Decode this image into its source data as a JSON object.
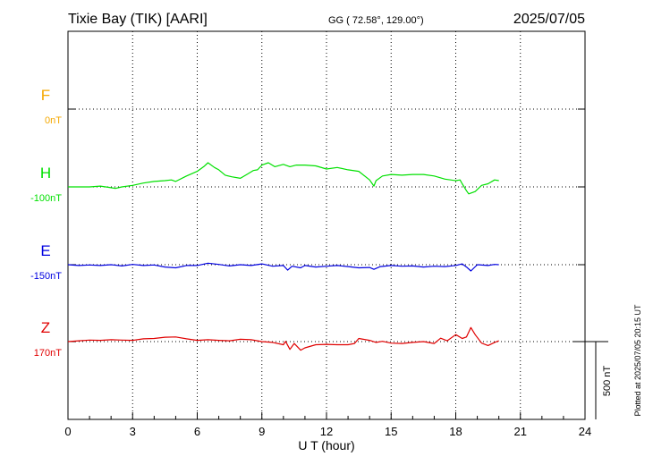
{
  "header": {
    "station": "Tixie Bay (TIK)  [AARI]",
    "coords": "GG ( 72.58°, 129.00°)",
    "date": "2025/07/05"
  },
  "footer": {
    "plotted": "Plotted at 2025/07/05 20:15 UT"
  },
  "colors": {
    "F": "#f5a800",
    "H": "#00e000",
    "E": "#0000e0",
    "Z": "#e00000"
  },
  "chart_data": {
    "type": "line",
    "xlabel": "U T (hour)",
    "xlim": [
      0,
      24
    ],
    "xticks": [
      "0",
      "3",
      "6",
      "9",
      "12",
      "15",
      "18",
      "21",
      "24"
    ],
    "y_offset_units": "nT",
    "scale_bar_label": "500 nT",
    "scale_bar_nT": 500,
    "grid": true,
    "series": [
      {
        "name": "F",
        "baseline_label": "0nT",
        "values": []
      },
      {
        "name": "H",
        "baseline_label": "-100nT",
        "x": [
          0,
          1,
          1.5,
          2,
          2.2,
          2.5,
          3,
          3.5,
          4,
          4.5,
          4.8,
          5,
          5.5,
          6,
          6.3,
          6.5,
          6.8,
          7,
          7.3,
          7.6,
          8,
          8.3,
          8.6,
          8.8,
          9,
          9.3,
          9.6,
          10,
          10.3,
          10.6,
          11,
          11.5,
          12,
          12.5,
          13,
          13.5,
          14,
          14.2,
          14.3,
          14.6,
          15,
          15.5,
          16,
          16.5,
          17,
          17.5,
          18,
          18.2,
          18.3,
          18.5,
          18.6,
          18.9,
          19.2,
          19.5,
          19.8,
          20
        ],
        "values": [
          -100,
          -100,
          -95,
          -105,
          -110,
          -100,
          -90,
          -75,
          -65,
          -60,
          -55,
          -65,
          -30,
          0,
          30,
          55,
          25,
          10,
          -25,
          -35,
          -45,
          -20,
          5,
          10,
          40,
          55,
          30,
          45,
          30,
          40,
          40,
          35,
          15,
          25,
          10,
          0,
          -55,
          -95,
          -60,
          -30,
          -20,
          -25,
          -20,
          -20,
          -30,
          -50,
          -60,
          -55,
          -80,
          -125,
          -145,
          -130,
          -90,
          -80,
          -55,
          -60
        ]
      },
      {
        "name": "E",
        "baseline_label": "-150nT",
        "x": [
          0,
          0.5,
          1,
          1.5,
          2,
          2.5,
          3,
          3.5,
          4,
          4.5,
          5,
          5.5,
          6,
          6.5,
          7,
          7.5,
          8,
          8.5,
          9,
          9.5,
          10,
          10.2,
          10.4,
          10.8,
          11,
          11.5,
          12,
          12.5,
          13,
          13.5,
          14,
          14.2,
          14.5,
          15,
          15.5,
          16,
          16.5,
          17,
          17.5,
          18,
          18.3,
          18.5,
          18.7,
          19,
          19.5,
          19.8,
          20
        ],
        "values": [
          -150,
          -155,
          -152,
          -155,
          -150,
          -158,
          -148,
          -155,
          -152,
          -165,
          -170,
          -155,
          -155,
          -140,
          -148,
          -158,
          -150,
          -155,
          -145,
          -160,
          -155,
          -185,
          -160,
          -170,
          -155,
          -165,
          -160,
          -155,
          -162,
          -170,
          -168,
          -180,
          -162,
          -155,
          -160,
          -158,
          -165,
          -160,
          -162,
          -155,
          -145,
          -165,
          -190,
          -150,
          -155,
          -148,
          -150
        ]
      },
      {
        "name": "Z",
        "baseline_label": "170nT",
        "x": [
          0,
          0.5,
          1,
          1.5,
          2,
          2.5,
          3,
          3.5,
          4,
          4.5,
          5,
          5.5,
          6,
          6.5,
          7,
          7.5,
          8,
          8.5,
          9,
          9.5,
          10,
          10.1,
          10.3,
          10.5,
          10.8,
          11,
          11.5,
          12,
          12.5,
          13,
          13.3,
          13.5,
          14,
          14.3,
          14.6,
          15,
          15.5,
          16,
          16.5,
          17,
          17.3,
          17.6,
          18,
          18.3,
          18.5,
          18.7,
          18.9,
          19.2,
          19.5,
          19.8,
          20
        ],
        "values": [
          170,
          175,
          180,
          178,
          182,
          180,
          178,
          188,
          190,
          198,
          200,
          188,
          178,
          182,
          178,
          175,
          185,
          182,
          170,
          165,
          150,
          172,
          120,
          158,
          115,
          130,
          150,
          152,
          150,
          150,
          158,
          190,
          178,
          165,
          172,
          160,
          158,
          165,
          170,
          158,
          192,
          175,
          215,
          190,
          200,
          260,
          215,
          160,
          145,
          165,
          175
        ]
      }
    ]
  }
}
